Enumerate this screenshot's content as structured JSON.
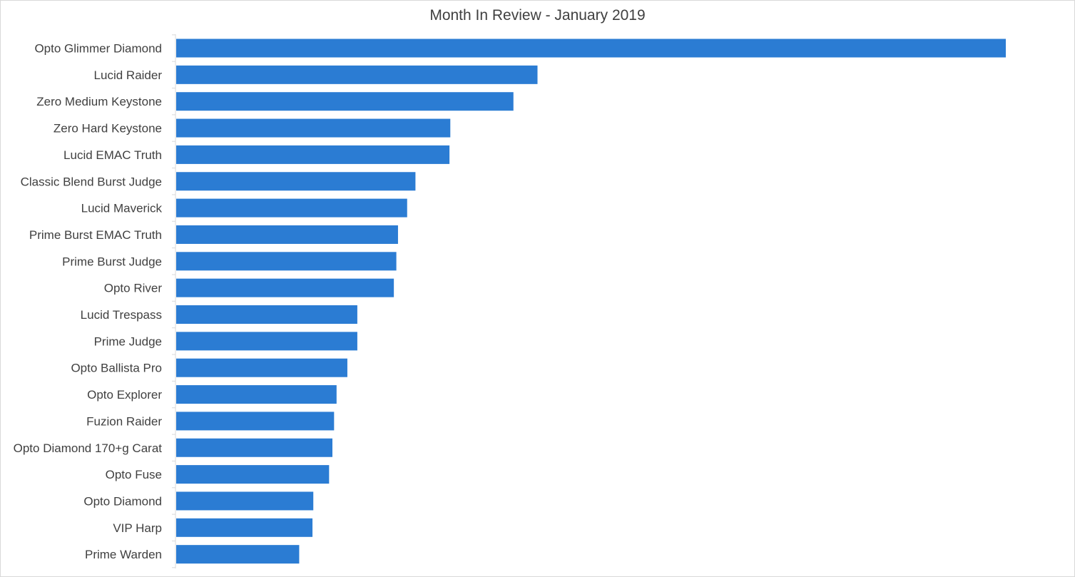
{
  "chart_data": {
    "type": "bar",
    "orientation": "horizontal",
    "title": "Month In Review - January 2019",
    "xlabel": "",
    "ylabel": "",
    "categories": [
      "Opto Glimmer Diamond",
      "Lucid Raider",
      "Zero Medium Keystone",
      "Zero Hard Keystone",
      "Lucid EMAC Truth",
      "Classic Blend Burst Judge",
      "Lucid Maverick",
      "Prime Burst EMAC Truth",
      "Prime Burst Judge",
      "Opto River",
      "Lucid Trespass",
      "Prime Judge",
      "Opto Ballista Pro",
      "Opto Explorer",
      "Fuzion Raider",
      "Opto Diamond 170+g Carat",
      "Opto Fuse",
      "Opto Diamond",
      "VIP Harp",
      "Prime Warden"
    ],
    "values": [
      100,
      43.6,
      40.7,
      33.1,
      33.0,
      28.9,
      27.9,
      26.8,
      26.6,
      26.3,
      21.9,
      21.9,
      20.7,
      19.4,
      19.1,
      18.9,
      18.5,
      16.6,
      16.5,
      14.9
    ],
    "xlim": [
      0,
      100
    ],
    "grid": false,
    "legend": "none",
    "bar_color": "#2b7cd3",
    "axis_color": "#d9d9d9"
  }
}
